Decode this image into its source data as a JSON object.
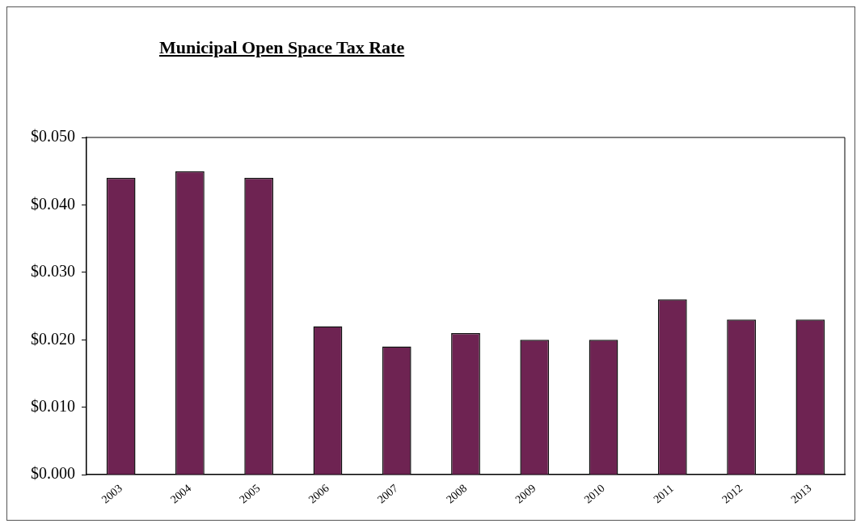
{
  "chart_data": {
    "type": "bar",
    "title": "Municipal Open Space Tax Rate",
    "categories": [
      "2003",
      "2004",
      "2005",
      "2006",
      "2007",
      "2008",
      "2009",
      "2010",
      "2011",
      "2012",
      "2013"
    ],
    "values": [
      0.044,
      0.045,
      0.044,
      0.022,
      0.019,
      0.021,
      0.02,
      0.02,
      0.026,
      0.023,
      0.023
    ],
    "color": "#6e2352",
    "ylim": [
      0,
      0.05
    ],
    "yticks": [
      {
        "value": 0,
        "label": "$0.000"
      },
      {
        "value": 0.01,
        "label": "$0.010"
      },
      {
        "value": 0.02,
        "label": "$0.020"
      },
      {
        "value": 0.03,
        "label": "$0.030"
      },
      {
        "value": 0.04,
        "label": "$0.040"
      },
      {
        "value": 0.05,
        "label": "$0.050"
      }
    ],
    "grid": false,
    "legend": false
  }
}
